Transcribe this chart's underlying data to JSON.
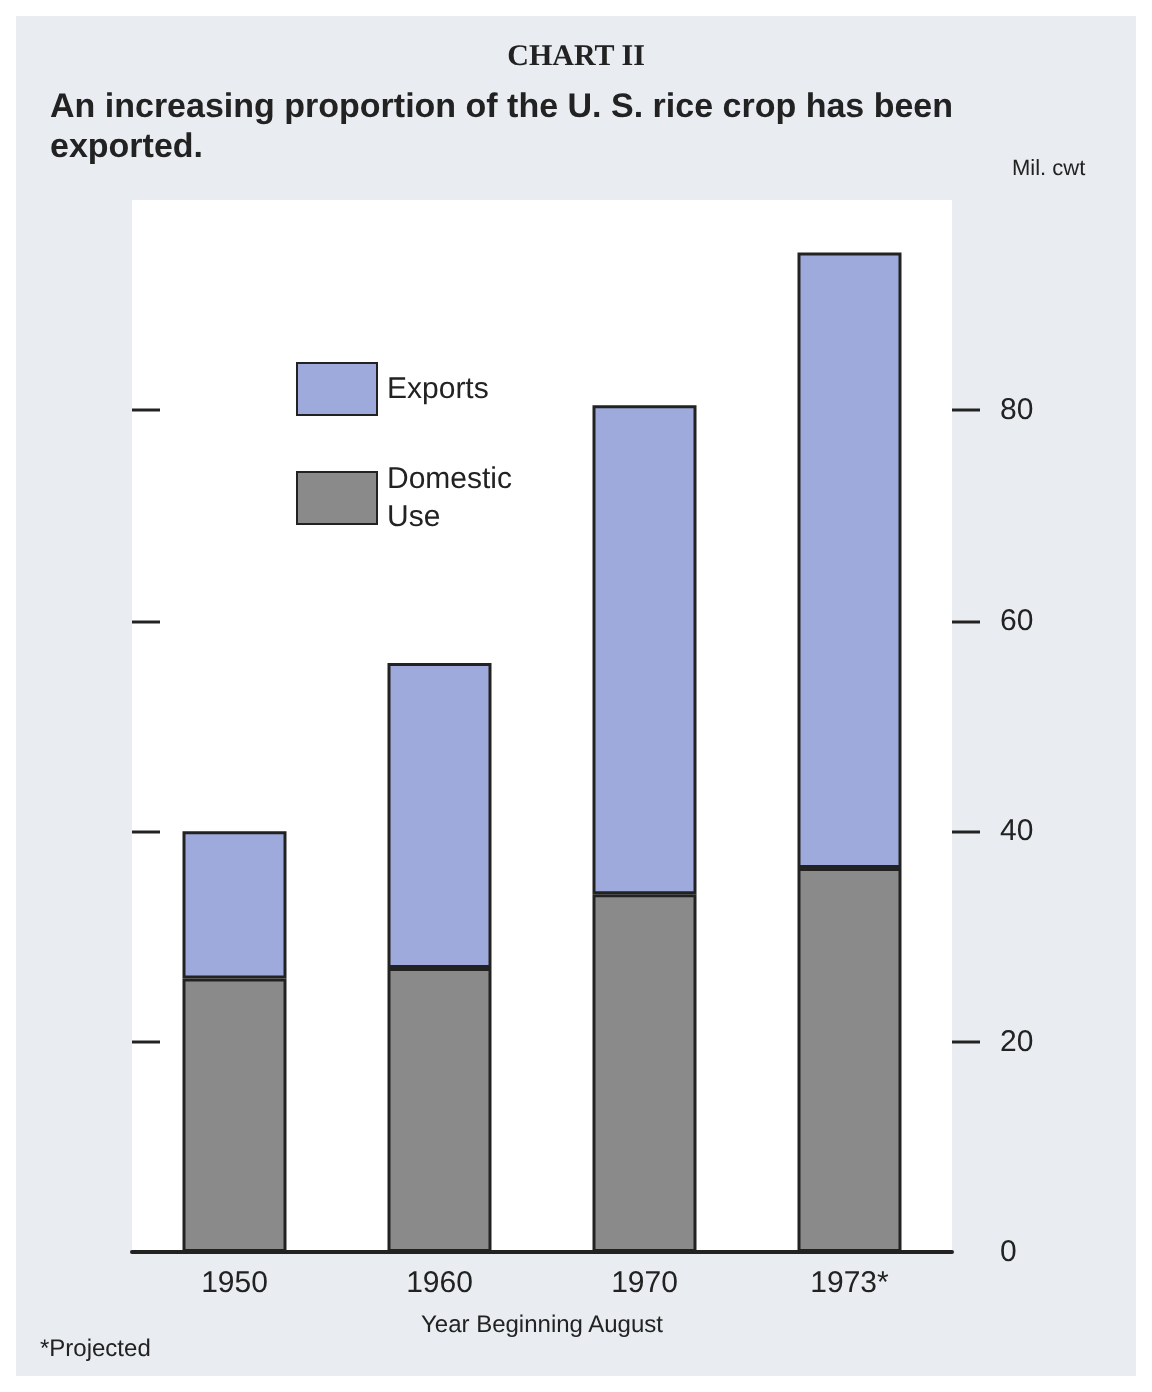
{
  "chart_data": {
    "type": "bar",
    "title": "CHART II",
    "subtitle": "An increasing proportion of the U. S. rice crop has been exported.",
    "xlabel": "Year Beginning August",
    "ylabel": "Mil. cwt",
    "annotations": [
      "*Projected"
    ],
    "categories": [
      "1950",
      "1960",
      "1970",
      "1973*"
    ],
    "stacked": true,
    "series": [
      {
        "name": "Domestic Use",
        "color": "#8a8a8a",
        "values": [
          26,
          27,
          34,
          36.5
        ]
      },
      {
        "name": "Exports",
        "color": "#9eaadb",
        "values": [
          14,
          29,
          46.5,
          58.5
        ]
      }
    ],
    "ylim": [
      0,
      100
    ],
    "yticks": [
      0,
      20,
      40,
      60,
      80
    ],
    "grid": false,
    "legend": "top left"
  }
}
